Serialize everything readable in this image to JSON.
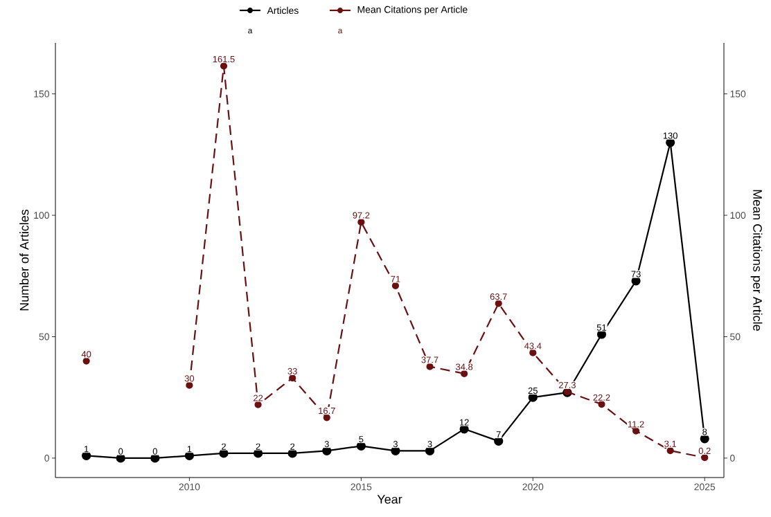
{
  "chart_data": {
    "type": "line",
    "xlabel": "Year",
    "ylabel": "Number of Articles",
    "y2label": "Mean Citations per Article",
    "x": [
      2007,
      2008,
      2009,
      2010,
      2011,
      2012,
      2013,
      2014,
      2015,
      2016,
      2017,
      2018,
      2019,
      2020,
      2021,
      2022,
      2023,
      2024,
      2025
    ],
    "series": [
      {
        "name": "Articles",
        "color": "#000000",
        "line_style": "solid",
        "values": [
          1,
          0,
          0,
          1,
          2,
          2,
          2,
          3,
          5,
          3,
          3,
          12,
          7,
          25,
          27,
          51,
          73,
          130,
          8
        ],
        "value_labels": [
          "1",
          "0",
          "0",
          "1",
          "2",
          "2",
          "2",
          "3",
          "5",
          "3",
          "3",
          "12",
          "7",
          "25",
          null,
          "51",
          "73",
          "130",
          "8"
        ]
      },
      {
        "name": "Mean Citations per Article",
        "color": "#6b1010",
        "axis": "y2",
        "line_style": "dashed",
        "values": [
          40,
          null,
          null,
          30,
          161.5,
          22,
          33,
          16.7,
          97.2,
          71,
          37.7,
          34.8,
          63.7,
          43.4,
          27.3,
          22.2,
          11.2,
          3.1,
          0.2
        ],
        "value_labels": [
          "40",
          null,
          null,
          "30",
          "161.5",
          "22",
          "33",
          "16.7",
          "97.2",
          "71",
          "37.7",
          "34.8",
          "63.7",
          "43.4",
          "27.3",
          "22.2",
          "11.2",
          "3.1",
          "0.2"
        ]
      }
    ],
    "annotations": [
      "a",
      "a"
    ],
    "xlim": [
      2006.1,
      2025.56
    ],
    "xticks": [
      2010,
      2015,
      2020,
      2025
    ],
    "ylim": [
      -8,
      171
    ],
    "yticks": [
      0,
      50,
      100,
      150
    ],
    "y2lim": [
      -8,
      171
    ],
    "y2ticks": [
      0,
      50,
      100,
      150
    ],
    "marker": "circle",
    "grid": false,
    "legend": "top"
  }
}
